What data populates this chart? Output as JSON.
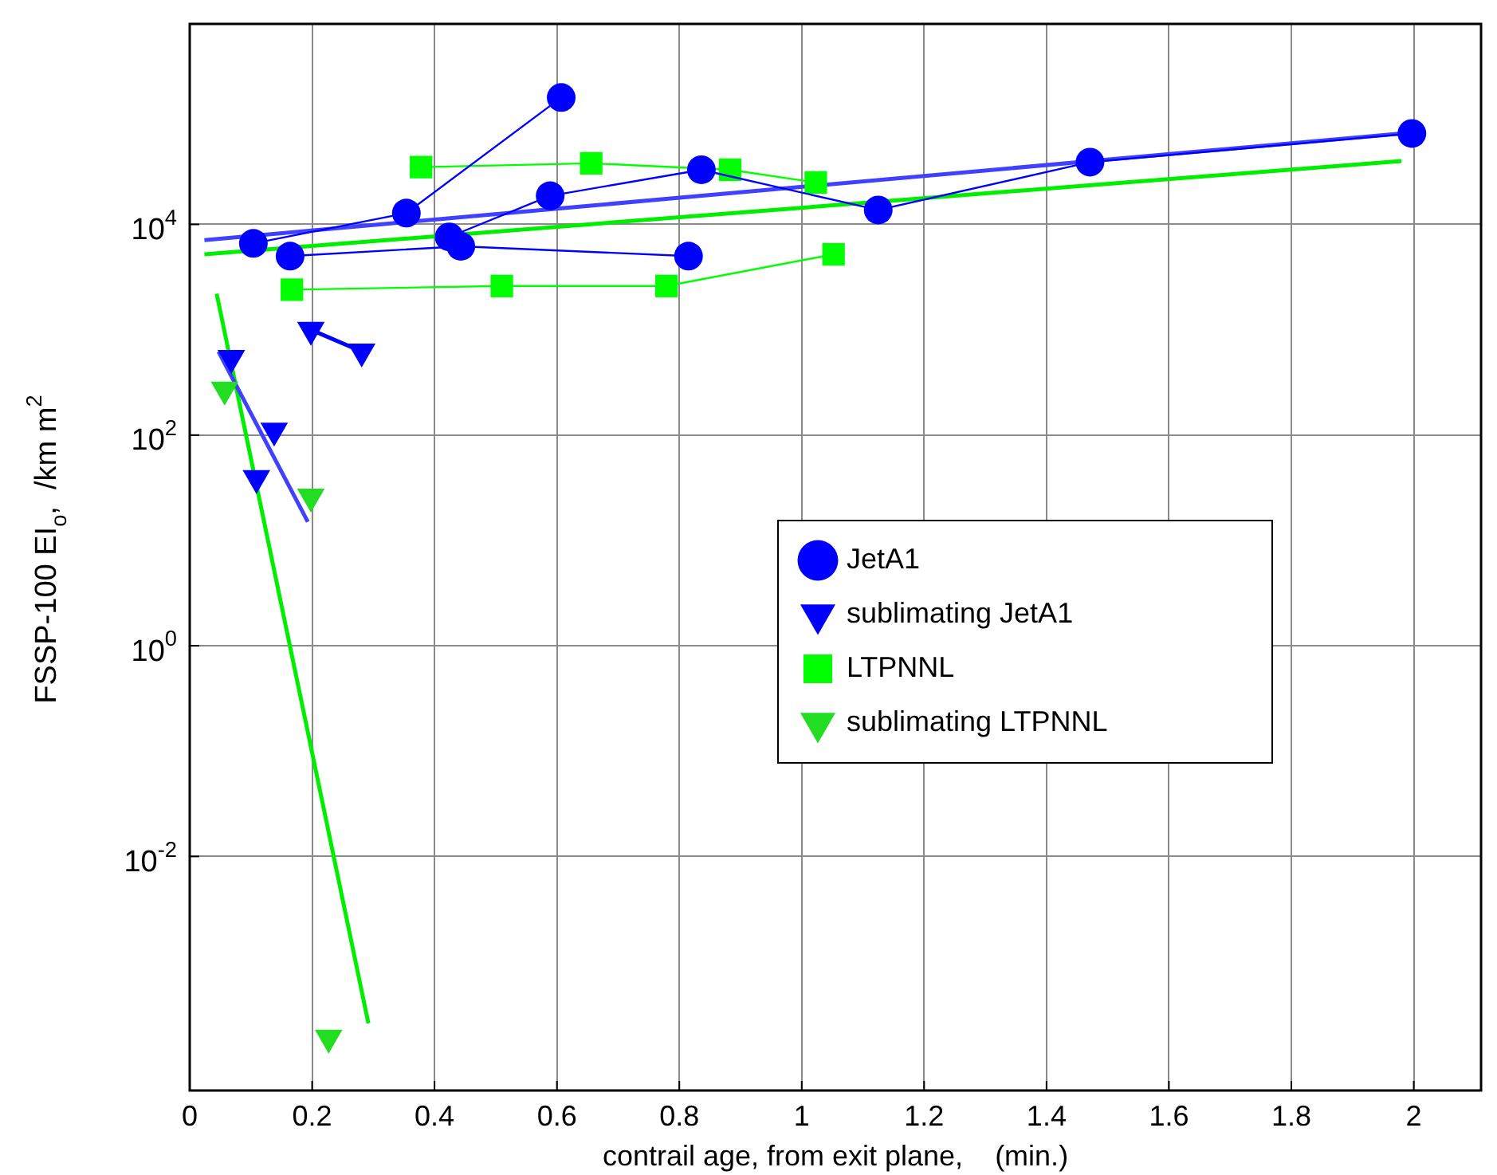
{
  "chart_data": {
    "type": "line",
    "xlabel": "contrail age, from exit plane,    (min.)",
    "ylabel": "FSSP-100 EI$_{o}$,  /km m$^{2}$",
    "log": "y",
    "grid": true,
    "legend": "right",
    "xlim": [
      0,
      2.11
    ],
    "xticks": [
      0,
      0.2,
      0.4,
      0.6,
      0.8,
      1,
      1.2,
      1.4,
      1.6,
      1.8,
      2
    ],
    "ylim": [
      6e-05,
      800000
    ],
    "yticks": [
      {
        "value": 0.01,
        "label": "10$^{-2}$"
      },
      {
        "value": 1,
        "label": "10$^{0}$"
      },
      {
        "value": 100,
        "label": "10$^{2}$"
      },
      {
        "value": 10000,
        "label": "10$^{4}$"
      }
    ],
    "series": [
      {
        "name": "JetA1",
        "marker": "circle",
        "color": "#0000ff",
        "x": [
          0.104,
          0.354,
          0.607,
          null,
          0.164,
          0.443,
          0.815,
          null,
          0.424,
          0.589,
          0.836,
          1.125,
          1.471,
          1.997
        ],
        "values": [
          6600,
          12800,
          160000,
          null,
          5000,
          6200,
          5000,
          null,
          7600,
          18700,
          33000,
          13700,
          39000,
          73000
        ]
      },
      {
        "name": "sublimating JetA1",
        "type": "scatter",
        "marker": "triangle",
        "color": "#0000ff",
        "x": [
          0.068,
          0.109,
          0.138,
          0.198,
          0.281
        ],
        "values": [
          540,
          39,
          110,
          1000,
          620
        ]
      },
      {
        "name": "LTPNNL",
        "marker": "square",
        "color": "#00ff00",
        "x": [
          0.378,
          0.656,
          0.883,
          1.023,
          null,
          0.167,
          0.51,
          0.779,
          1.052
        ],
        "values": [
          35000,
          38000,
          33000,
          25000,
          null,
          2400,
          2600,
          2600,
          5200
        ]
      },
      {
        "name": "sublimating LTPNNL",
        "type": "scatter",
        "marker": "triangle",
        "color": "#22dd22",
        "x": [
          0.057,
          0.198,
          0.227
        ],
        "values": [
          270,
          26,
          0.00019
        ]
      },
      {
        "type": "line",
        "marker": "none",
        "color": "#4040ff",
        "x": [
          0.024,
          1.98
        ],
        "values": [
          7100,
          73000
        ]
      },
      {
        "type": "line",
        "marker": "none",
        "color": "#0000ff",
        "x": [
          0.198,
          0.281
        ],
        "values": [
          1000,
          620
        ]
      },
      {
        "type": "line",
        "marker": "none",
        "color": "#4040ff",
        "x": [
          0.047,
          0.193
        ],
        "values": [
          620,
          15
        ]
      },
      {
        "type": "line",
        "marker": "none",
        "color": "#00ee00",
        "x": [
          0.024,
          1.98
        ],
        "values": [
          5200,
          40000
        ]
      },
      {
        "type": "line",
        "marker": "none",
        "color": "#00ee00",
        "x": [
          0.044,
          0.292
        ],
        "values": [
          2200,
          0.00026
        ]
      }
    ]
  }
}
